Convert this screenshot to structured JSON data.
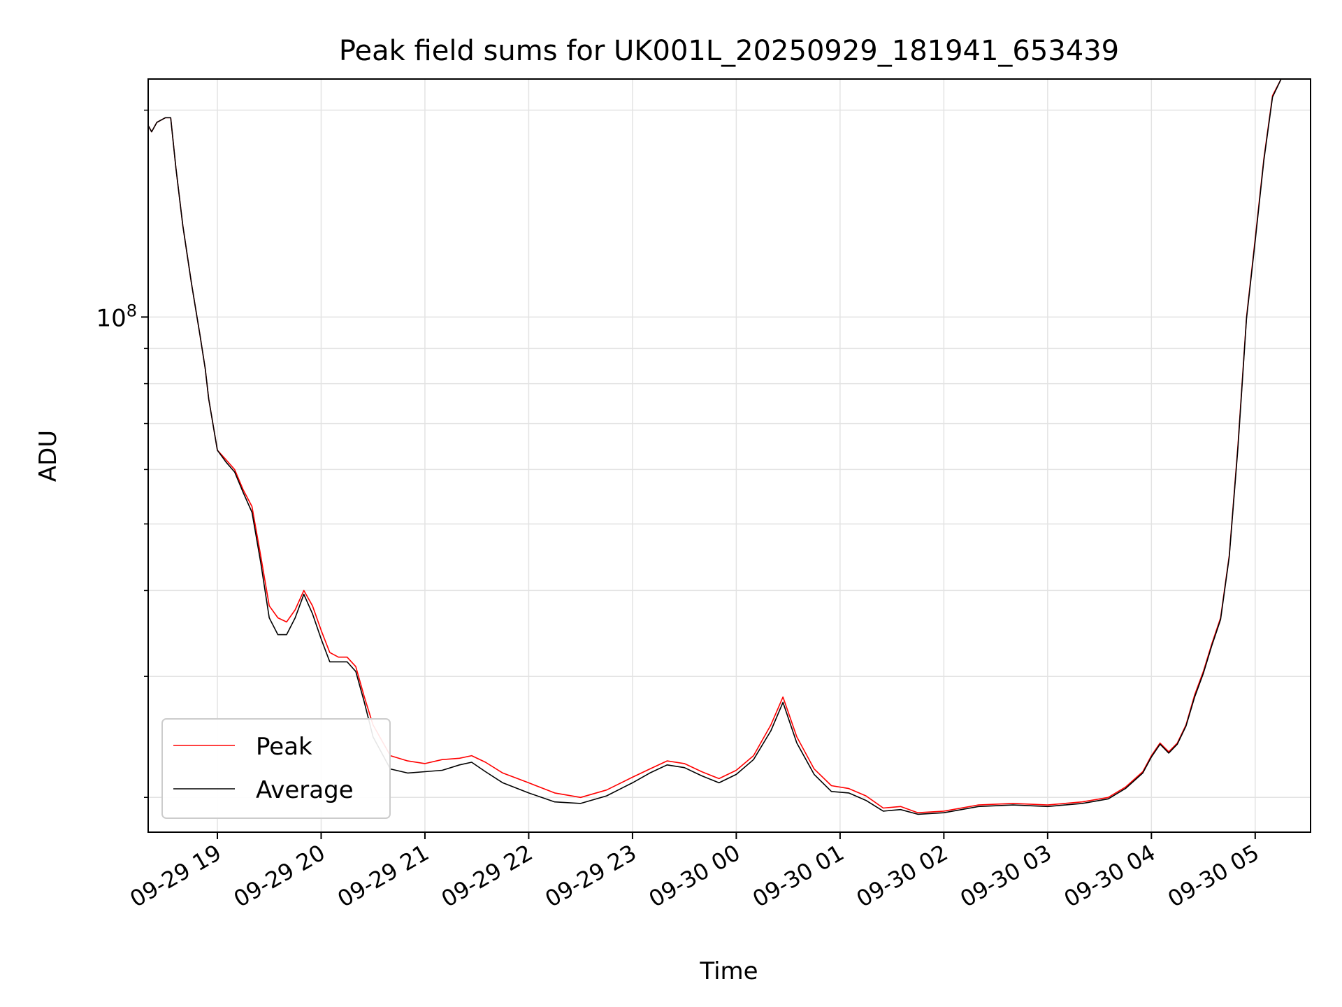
{
  "chart_data": {
    "type": "line",
    "title": "Peak field sums for UK001L_20250929_181941_653439",
    "xlabel": "Time",
    "ylabel": "ADU",
    "yscale": "log",
    "grid": true,
    "legend": "lower-left",
    "xlim": [
      "2025-09-29 18:20",
      "2025-09-30 05:32"
    ],
    "ylim": [
      17800000,
      222000000
    ],
    "x_ticks": [
      "09-29 19",
      "09-29 20",
      "09-29 21",
      "09-29 22",
      "09-29 23",
      "09-30 00",
      "09-30 01",
      "09-30 02",
      "09-30 03",
      "09-30 04",
      "09-30 05"
    ],
    "y_major_tick": {
      "base": "10",
      "exponent": "8"
    },
    "series": [
      {
        "name": "Peak",
        "color": "#ff0000",
        "x": [
          "2025-09-29 18:20",
          "2025-09-29 18:22",
          "2025-09-29 18:25",
          "2025-09-29 18:30",
          "2025-09-29 18:33",
          "2025-09-29 18:36",
          "2025-09-29 18:40",
          "2025-09-29 18:45",
          "2025-09-29 18:50",
          "2025-09-29 18:53",
          "2025-09-29 18:55",
          "2025-09-29 19:00",
          "2025-09-29 19:05",
          "2025-09-29 19:10",
          "2025-09-29 19:15",
          "2025-09-29 19:20",
          "2025-09-29 19:25",
          "2025-09-29 19:30",
          "2025-09-29 19:35",
          "2025-09-29 19:40",
          "2025-09-29 19:45",
          "2025-09-29 19:50",
          "2025-09-29 19:55",
          "2025-09-29 20:00",
          "2025-09-29 20:05",
          "2025-09-29 20:10",
          "2025-09-29 20:15",
          "2025-09-29 20:20",
          "2025-09-29 20:25",
          "2025-09-29 20:30",
          "2025-09-29 20:40",
          "2025-09-29 20:50",
          "2025-09-29 21:00",
          "2025-09-29 21:10",
          "2025-09-29 21:20",
          "2025-09-29 21:27",
          "2025-09-29 21:35",
          "2025-09-29 21:45",
          "2025-09-29 22:00",
          "2025-09-29 22:15",
          "2025-09-29 22:30",
          "2025-09-29 22:45",
          "2025-09-29 23:00",
          "2025-09-29 23:10",
          "2025-09-29 23:20",
          "2025-09-29 23:30",
          "2025-09-29 23:40",
          "2025-09-29 23:50",
          "2025-09-30 00:00",
          "2025-09-30 00:10",
          "2025-09-30 00:20",
          "2025-09-30 00:27",
          "2025-09-30 00:35",
          "2025-09-30 00:45",
          "2025-09-30 00:55",
          "2025-09-30 01:05",
          "2025-09-30 01:15",
          "2025-09-30 01:25",
          "2025-09-30 01:35",
          "2025-09-30 01:45",
          "2025-09-30 02:00",
          "2025-09-30 02:20",
          "2025-09-30 02:40",
          "2025-09-30 03:00",
          "2025-09-30 03:20",
          "2025-09-30 03:35",
          "2025-09-30 03:45",
          "2025-09-30 03:55",
          "2025-09-30 04:00",
          "2025-09-30 04:05",
          "2025-09-30 04:10",
          "2025-09-30 04:15",
          "2025-09-30 04:20",
          "2025-09-30 04:25",
          "2025-09-30 04:30",
          "2025-09-30 04:35",
          "2025-09-30 04:40",
          "2025-09-30 04:45",
          "2025-09-30 04:50",
          "2025-09-30 04:55",
          "2025-09-30 05:00",
          "2025-09-30 05:05",
          "2025-09-30 05:10",
          "2025-09-30 05:15",
          "2025-09-30 05:18",
          "2025-09-30 05:21"
        ],
        "values": [
          190000000,
          186000000,
          192000000,
          195000000,
          195000000,
          165000000,
          136000000,
          112000000,
          94000000,
          84000000,
          76000000,
          64000000,
          62000000,
          60000000,
          56000000,
          53000000,
          45000000,
          38000000,
          36500000,
          36000000,
          37500000,
          40000000,
          38000000,
          35000000,
          32500000,
          32000000,
          32000000,
          31000000,
          28000000,
          25500000,
          23000000,
          22600000,
          22400000,
          22700000,
          22800000,
          23000000,
          22500000,
          21700000,
          21000000,
          20300000,
          20000000,
          20500000,
          21400000,
          22000000,
          22600000,
          22400000,
          21800000,
          21300000,
          21900000,
          23000000,
          25500000,
          28000000,
          24500000,
          22000000,
          20800000,
          20600000,
          20100000,
          19300000,
          19400000,
          19000000,
          19100000,
          19500000,
          19600000,
          19500000,
          19700000,
          20000000,
          20700000,
          21800000,
          23000000,
          24000000,
          23300000,
          24000000,
          25500000,
          28200000,
          30500000,
          33500000,
          36500000,
          45000000,
          65000000,
          100000000,
          130000000,
          170000000,
          210000000,
          222000000,
          222000000,
          222000000
        ]
      },
      {
        "name": "Average",
        "color": "#000000",
        "x": [
          "2025-09-29 18:20",
          "2025-09-29 18:22",
          "2025-09-29 18:25",
          "2025-09-29 18:30",
          "2025-09-29 18:33",
          "2025-09-29 18:36",
          "2025-09-29 18:40",
          "2025-09-29 18:45",
          "2025-09-29 18:50",
          "2025-09-29 18:53",
          "2025-09-29 18:55",
          "2025-09-29 19:00",
          "2025-09-29 19:05",
          "2025-09-29 19:10",
          "2025-09-29 19:15",
          "2025-09-29 19:20",
          "2025-09-29 19:25",
          "2025-09-29 19:30",
          "2025-09-29 19:35",
          "2025-09-29 19:40",
          "2025-09-29 19:45",
          "2025-09-29 19:50",
          "2025-09-29 19:55",
          "2025-09-29 20:00",
          "2025-09-29 20:05",
          "2025-09-29 20:10",
          "2025-09-29 20:15",
          "2025-09-29 20:20",
          "2025-09-29 20:25",
          "2025-09-29 20:30",
          "2025-09-29 20:40",
          "2025-09-29 20:50",
          "2025-09-29 21:00",
          "2025-09-29 21:10",
          "2025-09-29 21:20",
          "2025-09-29 21:27",
          "2025-09-29 21:35",
          "2025-09-29 21:45",
          "2025-09-29 22:00",
          "2025-09-29 22:15",
          "2025-09-29 22:30",
          "2025-09-29 22:45",
          "2025-09-29 23:00",
          "2025-09-29 23:10",
          "2025-09-29 23:20",
          "2025-09-29 23:30",
          "2025-09-29 23:40",
          "2025-09-29 23:50",
          "2025-09-30 00:00",
          "2025-09-30 00:10",
          "2025-09-30 00:20",
          "2025-09-30 00:27",
          "2025-09-30 00:35",
          "2025-09-30 00:45",
          "2025-09-30 00:55",
          "2025-09-30 01:05",
          "2025-09-30 01:15",
          "2025-09-30 01:25",
          "2025-09-30 01:35",
          "2025-09-30 01:45",
          "2025-09-30 02:00",
          "2025-09-30 02:20",
          "2025-09-30 02:40",
          "2025-09-30 03:00",
          "2025-09-30 03:20",
          "2025-09-30 03:35",
          "2025-09-30 03:45",
          "2025-09-30 03:55",
          "2025-09-30 04:00",
          "2025-09-30 04:05",
          "2025-09-30 04:10",
          "2025-09-30 04:15",
          "2025-09-30 04:20",
          "2025-09-30 04:25",
          "2025-09-30 04:30",
          "2025-09-30 04:35",
          "2025-09-30 04:40",
          "2025-09-30 04:45",
          "2025-09-30 04:50",
          "2025-09-30 04:55",
          "2025-09-30 05:00",
          "2025-09-30 05:05",
          "2025-09-30 05:10",
          "2025-09-30 05:15",
          "2025-09-30 05:18",
          "2025-09-30 05:21"
        ],
        "values": [
          190000000,
          186000000,
          192000000,
          195000000,
          195000000,
          165000000,
          136000000,
          112000000,
          94000000,
          84000000,
          76000000,
          64000000,
          61500000,
          59500000,
          55500000,
          52000000,
          44000000,
          36500000,
          34500000,
          34500000,
          36500000,
          39500000,
          37000000,
          34000000,
          31500000,
          31500000,
          31500000,
          30500000,
          27500000,
          24500000,
          22000000,
          21700000,
          21800000,
          21900000,
          22300000,
          22500000,
          21800000,
          21000000,
          20300000,
          19700000,
          19600000,
          20100000,
          21000000,
          21700000,
          22300000,
          22100000,
          21500000,
          21000000,
          21600000,
          22700000,
          25000000,
          27500000,
          24000000,
          21600000,
          20400000,
          20300000,
          19800000,
          19100000,
          19200000,
          18900000,
          19000000,
          19400000,
          19500000,
          19400000,
          19600000,
          19900000,
          20600000,
          21700000,
          22900000,
          23900000,
          23200000,
          23900000,
          25400000,
          28000000,
          30300000,
          33300000,
          36300000,
          44800000,
          64500000,
          99500000,
          129000000,
          169000000,
          209000000,
          222000000,
          222000000,
          222000000
        ]
      }
    ]
  }
}
